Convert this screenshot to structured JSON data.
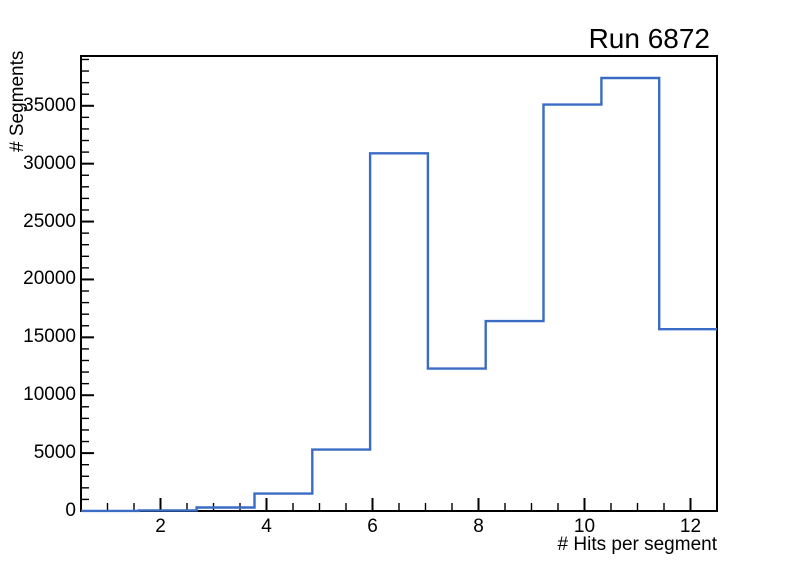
{
  "title": "Run 6872",
  "chart_data": {
    "type": "bar",
    "style": "step-outline-histogram",
    "title": "Run 6872",
    "xlabel": "# Hits per segment",
    "ylabel": "# Segments",
    "xlim": [
      0.5,
      12.5
    ],
    "ylim": [
      0,
      39300
    ],
    "grid": false,
    "legend": "none",
    "bin_edges": [
      0.5,
      1.5909,
      2.6818,
      3.7727,
      4.8636,
      5.9545,
      7.0455,
      8.1364,
      9.2273,
      10.3182,
      11.4091,
      12.5
    ],
    "values": [
      10,
      50,
      300,
      1500,
      5300,
      30900,
      12300,
      16400,
      35100,
      37400,
      15700
    ],
    "x_tick_values": [
      2,
      4,
      6,
      8,
      10,
      12
    ],
    "x_tick_labels": [
      "2",
      "4",
      "6",
      "8",
      "10",
      "12"
    ],
    "x_minor_step": 0.5,
    "y_tick_values": [
      0,
      5000,
      10000,
      15000,
      20000,
      25000,
      30000,
      35000
    ],
    "y_tick_labels": [
      "0",
      "5000",
      "10000",
      "15000",
      "20000",
      "25000",
      "30000",
      "35000"
    ],
    "y_minor_step": 1000,
    "line_color": "#3a6cc5",
    "axis_color": "#000000",
    "background_color": "#ffffff",
    "text_color": "#000000"
  }
}
